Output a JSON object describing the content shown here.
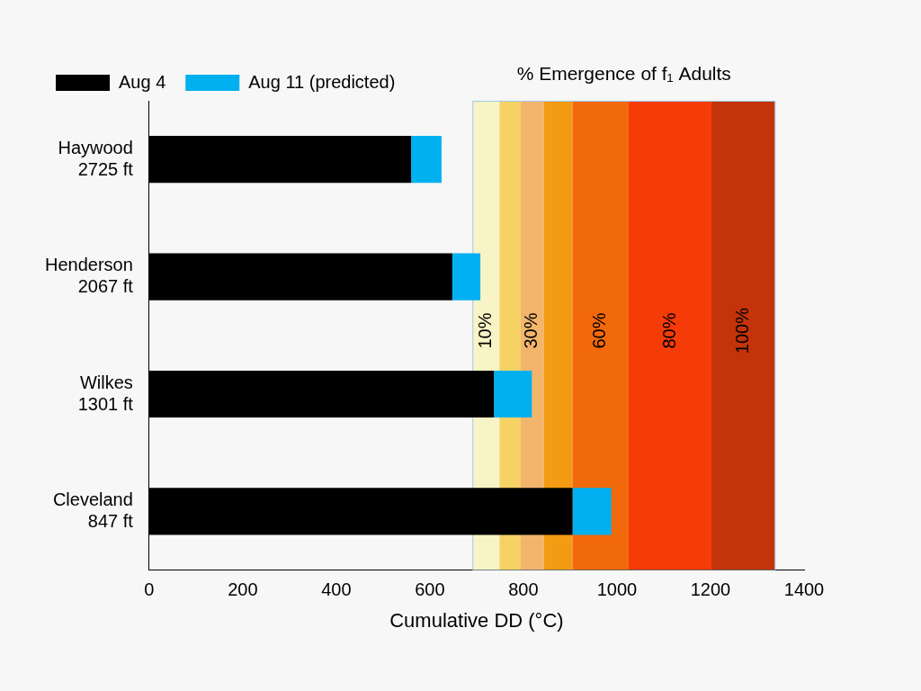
{
  "chart_data": {
    "type": "bar",
    "orientation": "horizontal",
    "stacked": true,
    "grid": false,
    "legend": "top-left",
    "categories": [
      [
        "Haywood",
        "2725 ft"
      ],
      [
        "Henderson",
        "2067 ft"
      ],
      [
        "Wilkes",
        "1301 ft"
      ],
      [
        "Cleveland",
        "847 ft"
      ]
    ],
    "series": [
      {
        "name": "Aug 4",
        "color": "#000000",
        "values": [
          560,
          648,
          737,
          905
        ]
      },
      {
        "name": "Aug 11 (predicted)",
        "color": "#00b0f0",
        "values": [
          65,
          60,
          81,
          83
        ]
      }
    ],
    "xlabel": "Cumulative DD (°C)",
    "xlim": [
      0,
      1400
    ],
    "xticks": [
      0,
      200,
      400,
      600,
      800,
      1000,
      1200,
      1400
    ],
    "emergence_bands": {
      "title": "% Emergence of f₁ Adults",
      "bands": [
        {
          "from": 692,
          "to": 749,
          "label": "10%",
          "color": "#f8f4c6"
        },
        {
          "from": 749,
          "to": 794,
          "color": "#f5d263"
        },
        {
          "from": 794,
          "to": 844,
          "label": "30%",
          "color": "#f3b56c"
        },
        {
          "from": 844,
          "to": 905,
          "color": "#f39b12"
        },
        {
          "from": 905,
          "to": 1025,
          "label": "60%",
          "color": "#f2690b"
        },
        {
          "from": 1025,
          "to": 1202,
          "label": "80%",
          "color": "#f53b08"
        },
        {
          "from": 1202,
          "to": 1338,
          "label": "100%",
          "color": "#c4330a"
        }
      ]
    }
  }
}
